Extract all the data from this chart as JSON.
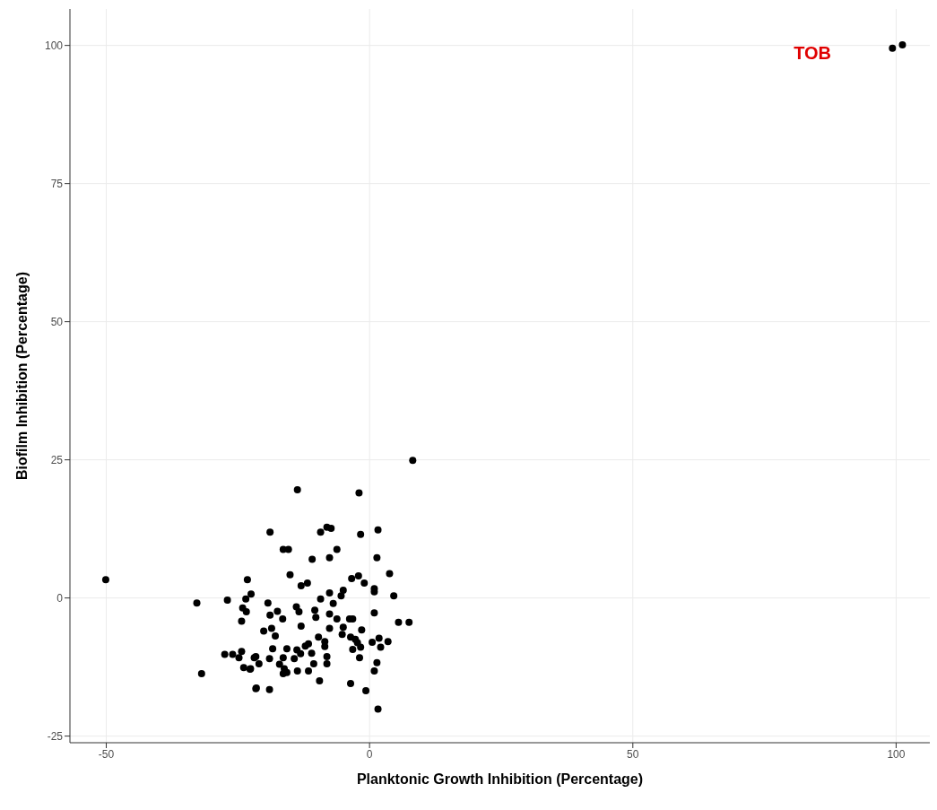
{
  "chart_data": {
    "type": "scatter",
    "xlabel": "Planktonic Growth Inhibition (Percentage)",
    "ylabel": "Biofilm Inhibition (Percentage)",
    "xlim": [
      -56.9,
      106.4
    ],
    "ylim": [
      -26.2,
      106.6
    ],
    "xticks": [
      -50,
      0,
      50,
      100
    ],
    "yticks": [
      -25,
      0,
      25,
      50,
      75,
      100
    ],
    "grid": true,
    "marker": "circle",
    "annotations": [
      "TOB"
    ],
    "series": [
      {
        "color": "#000000",
        "x": [
          -50.1,
          -23.2,
          -22.5,
          -23.5,
          -27.0,
          -32.8,
          -24.1,
          -23.4,
          -24.3,
          -27.5,
          -26.0,
          -24.3,
          -24.8,
          -21.9,
          -23.9,
          -22.7,
          -31.9,
          -21.6,
          8.2,
          -13.7,
          -2.0,
          -18.9,
          -9.3,
          -8.1,
          -7.3,
          -1.7,
          1.6,
          -16.4,
          -15.4,
          -6.2,
          -10.9,
          -7.6,
          1.4,
          3.8,
          -15.1,
          -13.0,
          -11.8,
          -3.4,
          -2.1,
          -1.0,
          0.9,
          0.9,
          4.6,
          -5.0,
          -5.4,
          -7.6,
          -9.3,
          -6.9,
          -19.3,
          -13.9,
          -13.4,
          -18.9,
          -17.5,
          -16.5,
          -10.4,
          -10.2,
          -7.6,
          -6.2,
          -3.8,
          -3.2,
          0.9,
          5.5,
          7.5,
          -13.0,
          -20.1,
          -18.6,
          -17.9,
          -7.6,
          -5.0,
          -5.2,
          -1.5,
          -9.7,
          -8.5,
          -8.5,
          -3.6,
          -2.7,
          -2.3,
          -1.7,
          -3.2,
          0.5,
          1.8,
          2.1,
          3.5,
          -18.4,
          -15.7,
          -13.8,
          -13.1,
          -12.2,
          -11.6,
          -11.0,
          -8.1,
          -8.1,
          -10.6,
          -21.6,
          -21.0,
          -22.6,
          -19.0,
          -16.4,
          -14.3,
          -17.1,
          -16.2,
          -15.7,
          -16.4,
          -13.7,
          -11.6,
          -1.9,
          1.4,
          0.9,
          -9.5,
          -3.6,
          -0.7,
          1.6,
          -21.5,
          -19.0,
          99.3,
          101.2
        ],
        "values": [
          3.3,
          3.3,
          0.7,
          -0.2,
          -0.4,
          -0.9,
          -1.8,
          -2.5,
          -4.2,
          -10.2,
          -10.2,
          -9.7,
          -10.8,
          -10.8,
          -12.6,
          -12.9,
          -13.7,
          -16.4,
          24.9,
          19.6,
          19.0,
          11.9,
          11.9,
          12.8,
          12.6,
          11.5,
          12.3,
          8.8,
          8.8,
          8.8,
          7.0,
          7.3,
          7.3,
          4.4,
          4.2,
          2.2,
          2.7,
          3.5,
          4.0,
          2.7,
          1.7,
          1.1,
          0.4,
          1.4,
          0.4,
          0.9,
          -0.2,
          -1.0,
          -0.9,
          -1.6,
          -2.5,
          -3.1,
          -2.4,
          -3.8,
          -2.2,
          -3.5,
          -2.9,
          -3.8,
          -3.8,
          -3.8,
          -2.7,
          -4.4,
          -4.4,
          -5.1,
          -6.0,
          -5.5,
          -6.9,
          -5.5,
          -5.3,
          -6.6,
          -5.8,
          -7.1,
          -7.9,
          -8.8,
          -7.1,
          -7.5,
          -8.1,
          -8.9,
          -9.3,
          -8.0,
          -7.3,
          -8.9,
          -7.9,
          -9.2,
          -9.2,
          -9.4,
          -10.1,
          -8.7,
          -8.3,
          -10.0,
          -10.6,
          -11.9,
          -11.9,
          -10.6,
          -11.9,
          -12.8,
          -11.0,
          -10.8,
          -11.0,
          -12.0,
          -12.8,
          -13.5,
          -13.7,
          -13.2,
          -13.2,
          -10.8,
          -11.7,
          -13.2,
          -15.0,
          -15.5,
          -16.8,
          -20.1,
          -16.3,
          -16.6,
          99.5,
          100.1
        ]
      }
    ]
  }
}
